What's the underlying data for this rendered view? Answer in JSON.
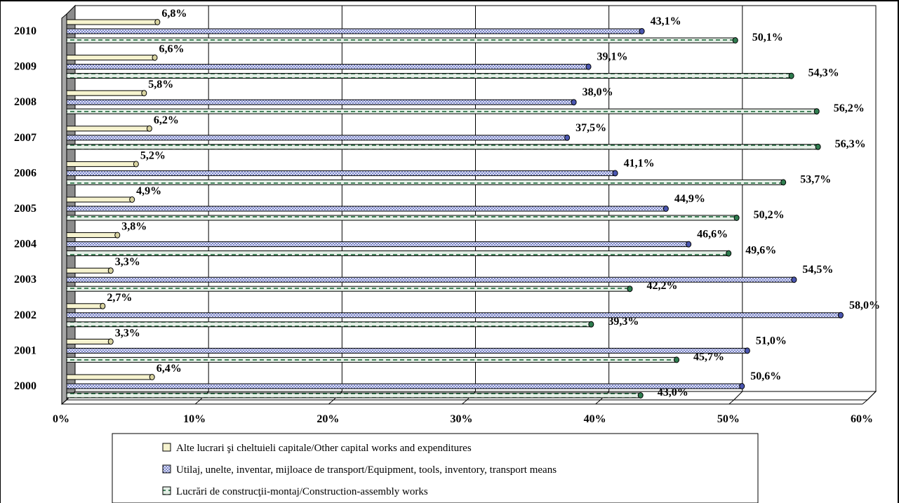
{
  "chart_data": {
    "type": "bar",
    "orientation": "horizontal",
    "title": "",
    "xlabel": "",
    "ylabel": "",
    "xlim": [
      0,
      60
    ],
    "x_ticks": [
      "0%",
      "10%",
      "20%",
      "30%",
      "40%",
      "50%",
      "60%"
    ],
    "grid": true,
    "legend_position": "bottom",
    "categories": [
      "2010",
      "2009",
      "2008",
      "2007",
      "2006",
      "2005",
      "2004",
      "2003",
      "2002",
      "2001",
      "2000"
    ],
    "series": [
      {
        "name": "Alte lucrari şi cheltuieli capitale/Other capital works and expenditures",
        "color": "#f3f0c7",
        "values": [
          6.8,
          6.6,
          5.8,
          6.2,
          5.2,
          4.9,
          3.8,
          3.3,
          2.7,
          3.3,
          6.4
        ],
        "labels": [
          "6,8%",
          "6,6%",
          "5,8%",
          "6,2%",
          "5,2%",
          "4,9%",
          "3,8%",
          "3,3%",
          "2,7%",
          "3,3%",
          "6,4%"
        ]
      },
      {
        "name": "Utilaj, unelte, inventar, mijloace de transport/Equipment, tools, inventory, transport means",
        "color": "#9aa4dc",
        "values": [
          43.1,
          39.1,
          38.0,
          37.5,
          41.1,
          44.9,
          46.6,
          54.5,
          58.0,
          51.0,
          50.6
        ],
        "labels": [
          "43,1%",
          "39,1%",
          "38,0%",
          "37,5%",
          "41,1%",
          "44,9%",
          "46,6%",
          "54,5%",
          "58,0%",
          "51,0%",
          "50,6%"
        ]
      },
      {
        "name": "Lucrări de construcţii-montaj/Construction-assembly works",
        "color": "#2f7d4f",
        "values": [
          50.1,
          54.3,
          56.2,
          56.3,
          53.7,
          50.2,
          49.6,
          42.2,
          39.3,
          45.7,
          43.0
        ],
        "labels": [
          "50,1%",
          "54,3%",
          "56,2%",
          "56,3%",
          "53,7%",
          "50,2%",
          "49,6%",
          "42,2%",
          "39,3%",
          "45,7%",
          "43,0%"
        ]
      }
    ]
  }
}
